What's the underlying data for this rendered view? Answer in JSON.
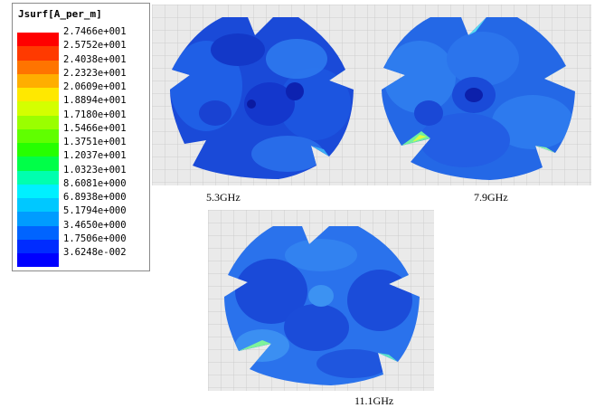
{
  "legend": {
    "title": "Jsurf[A_per_m]",
    "values": [
      "2.7466e+001",
      "2.5752e+001",
      "2.4038e+001",
      "2.2323e+001",
      "2.0609e+001",
      "1.8894e+001",
      "1.7180e+001",
      "1.5466e+001",
      "1.3751e+001",
      "1.2037e+001",
      "1.0323e+001",
      "8.6081e+000",
      "6.8938e+000",
      "5.1794e+000",
      "3.4650e+000",
      "1.7506e+000",
      "3.6248e-002"
    ],
    "colors": [
      "#ff0000",
      "#ff3a00",
      "#ff7400",
      "#ffae00",
      "#ffe800",
      "#d4ff00",
      "#9aff00",
      "#60ff00",
      "#26ff00",
      "#00ff48",
      "#00ffae",
      "#00f0ff",
      "#00c8ff",
      "#009cff",
      "#0064ff",
      "#002cff",
      "#0000ff"
    ]
  },
  "panels": [
    {
      "frequency": "5.3GHz"
    },
    {
      "frequency": "7.9GHz"
    },
    {
      "frequency": "11.1GHz"
    }
  ]
}
